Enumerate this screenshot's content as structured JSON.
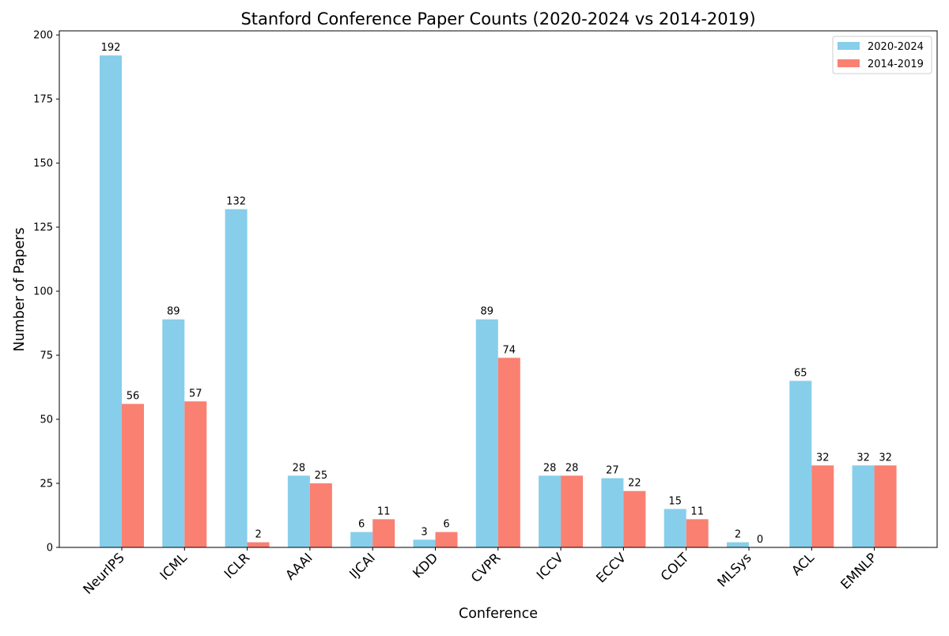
{
  "chart_data": {
    "type": "bar",
    "title": "Stanford Conference Paper Counts (2020-2024 vs 2014-2019)",
    "xlabel": "Conference",
    "ylabel": "Number of Papers",
    "categories": [
      "NeurIPS",
      "ICML",
      "ICLR",
      "AAAI",
      "IJCAI",
      "KDD",
      "CVPR",
      "ICCV",
      "ECCV",
      "COLT",
      "MLSys",
      "ACL",
      "EMNLP"
    ],
    "series": [
      {
        "name": "2020-2024",
        "color": "#87CEEB",
        "values": [
          192,
          89,
          132,
          28,
          6,
          3,
          89,
          28,
          27,
          15,
          2,
          65,
          32
        ]
      },
      {
        "name": "2014-2019",
        "color": "#FA8072",
        "values": [
          56,
          57,
          2,
          25,
          11,
          6,
          74,
          28,
          22,
          11,
          0,
          32,
          32
        ]
      }
    ],
    "ylim": [
      0,
      201.6
    ],
    "yticks": [
      0,
      25,
      50,
      75,
      100,
      125,
      150,
      175,
      200
    ],
    "grid": false,
    "legend_position": "top-right",
    "data_labels": true
  }
}
